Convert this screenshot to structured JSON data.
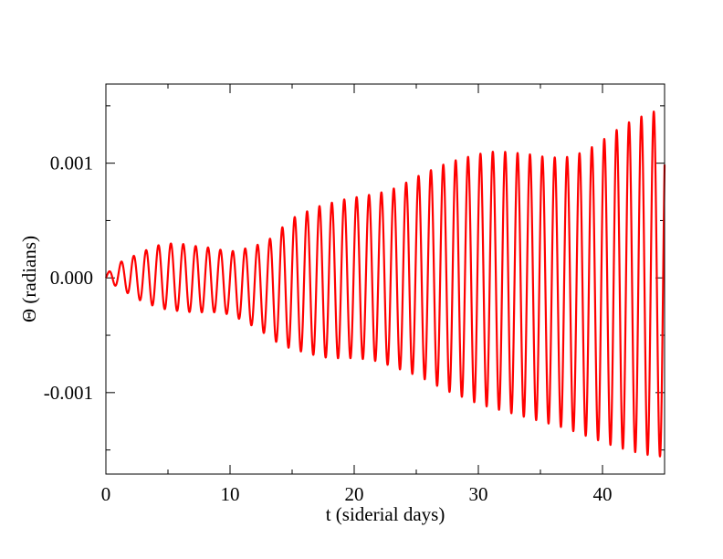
{
  "chart_data": {
    "type": "line",
    "title": "",
    "xlabel": "t (siderial days)",
    "ylabel": "Θ (radians)",
    "xlim": [
      0,
      45
    ],
    "ylim": [
      -0.00171,
      0.00169
    ],
    "x_ticks": [
      {
        "value": 0,
        "label": "0"
      },
      {
        "value": 10,
        "label": "10"
      },
      {
        "value": 20,
        "label": "20"
      },
      {
        "value": 30,
        "label": "30"
      },
      {
        "value": 40,
        "label": "40"
      }
    ],
    "x_minor_ticks": [
      5,
      15,
      25,
      35,
      45
    ],
    "y_ticks": [
      {
        "value": 0.001,
        "label": "0.001"
      },
      {
        "value": 0.0,
        "label": "0.000"
      },
      {
        "value": -0.001,
        "label": "-0.001"
      }
    ],
    "y_minor_ticks": [
      0.0015,
      0.0005,
      -0.0005,
      -0.0015
    ],
    "grid": false,
    "legend": "none",
    "series": [
      {
        "color": "#ff0000",
        "period": 0.9973,
        "envelope": {
          "t": [
            0,
            1,
            2,
            3,
            4,
            5,
            6,
            7,
            8,
            9,
            10,
            11,
            12,
            13,
            14,
            15,
            16,
            17,
            18,
            19,
            20,
            21,
            22,
            23,
            24,
            25,
            26,
            27,
            28,
            29,
            30,
            31,
            32,
            33,
            34,
            35,
            36,
            37,
            38,
            39,
            40,
            41,
            42,
            43,
            44,
            45
          ],
          "max": [
            3e-05,
            0.00013,
            0.00018,
            0.00023,
            0.00028,
            0.0003,
            0.0003,
            0.00028,
            0.00027,
            0.00025,
            0.00023,
            0.00025,
            0.00028,
            0.00032,
            0.00042,
            0.00052,
            0.00057,
            0.00062,
            0.00065,
            0.00068,
            0.0007,
            0.00072,
            0.00074,
            0.00077,
            0.00082,
            0.00088,
            0.00093,
            0.00098,
            0.00102,
            0.00105,
            0.00108,
            0.0011,
            0.0011,
            0.00109,
            0.00108,
            0.00106,
            0.00105,
            0.00105,
            0.00108,
            0.00113,
            0.0012,
            0.00128,
            0.00135,
            0.0014,
            0.00145,
            0.00145
          ],
          "min": [
            -3e-05,
            -8e-05,
            -0.00015,
            -0.00021,
            -0.00025,
            -0.00028,
            -0.00029,
            -0.0003,
            -0.0003,
            -0.0003,
            -0.00032,
            -0.00037,
            -0.00043,
            -0.0005,
            -0.00058,
            -0.00062,
            -0.00065,
            -0.00068,
            -0.0007,
            -0.0007,
            -0.0007,
            -0.00071,
            -0.00073,
            -0.00077,
            -0.00081,
            -0.00085,
            -0.0009,
            -0.00096,
            -0.00101,
            -0.00105,
            -0.0011,
            -0.00113,
            -0.00116,
            -0.00119,
            -0.00122,
            -0.00125,
            -0.00128,
            -0.00131,
            -0.00135,
            -0.00139,
            -0.00143,
            -0.00147,
            -0.0015,
            -0.00153,
            -0.00155,
            -0.00156
          ]
        }
      }
    ]
  }
}
